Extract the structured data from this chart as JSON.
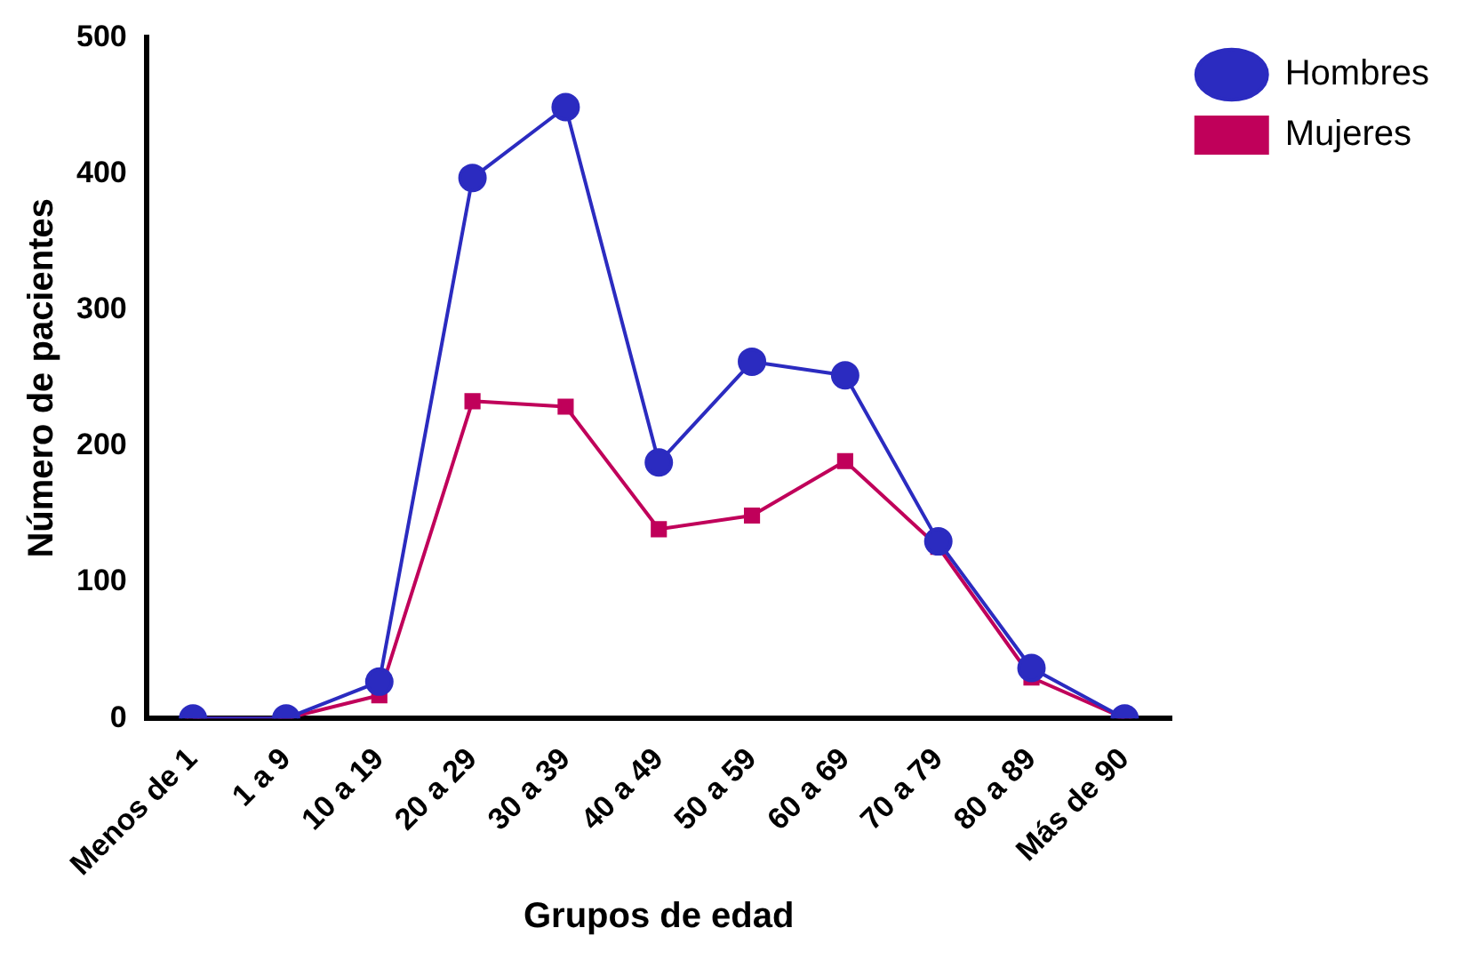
{
  "chart_data": {
    "type": "line",
    "xlabel": "Grupos de edad",
    "ylabel": "Número de pacientes",
    "categories": [
      "Menos de 1",
      "1 a 9",
      "10 a 19",
      "20 a 29",
      "30 a 39",
      "40 a 49",
      "50 a 59",
      "60 a 69",
      "70 a 79",
      "80 a 89",
      "Más de 90"
    ],
    "series": [
      {
        "name": "Hombres",
        "color": "#2b2bc0",
        "marker": "circle",
        "values": [
          0,
          0,
          27,
          397,
          449,
          188,
          262,
          252,
          130,
          37,
          0
        ]
      },
      {
        "name": "Mujeres",
        "color": "#c0005a",
        "marker": "square",
        "values": [
          0,
          0,
          17,
          233,
          229,
          139,
          149,
          189,
          126,
          30,
          0
        ]
      }
    ],
    "ylim": [
      0,
      500
    ],
    "yticks": [
      0,
      100,
      200,
      300,
      400,
      500
    ],
    "grid": false,
    "legend": "top right",
    "line_style": "solid"
  }
}
